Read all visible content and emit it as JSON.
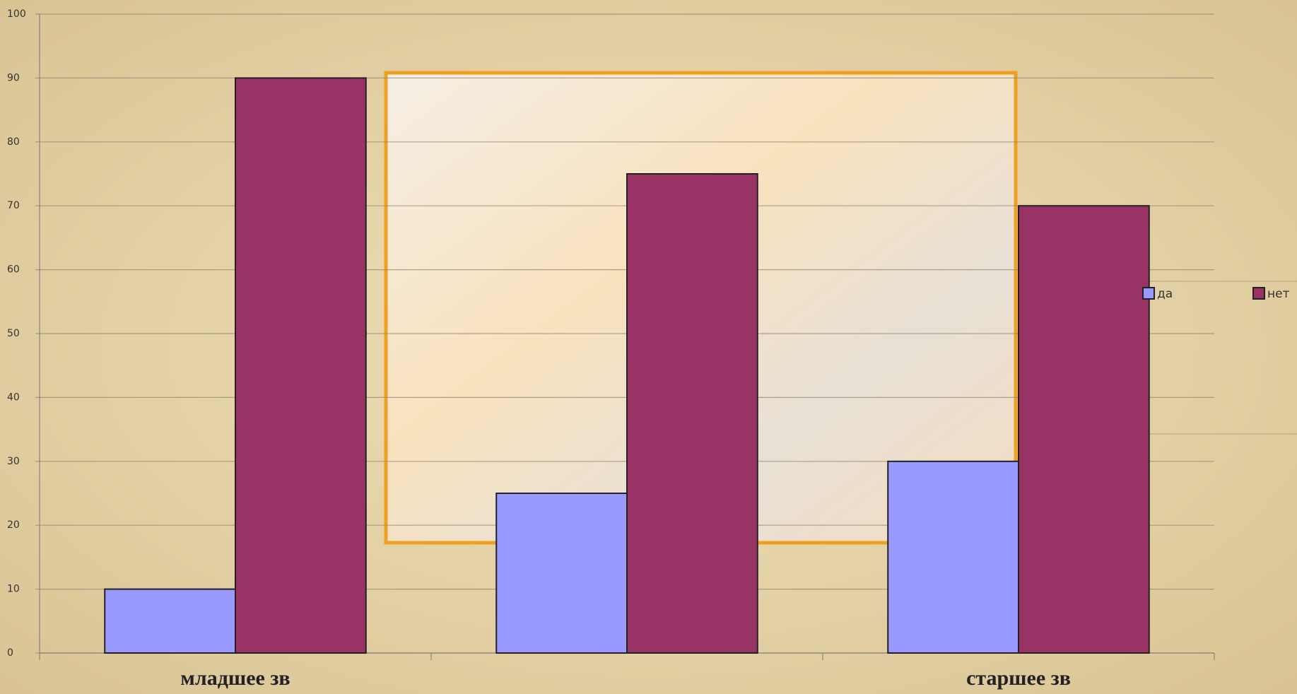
{
  "chart_data": {
    "type": "bar",
    "categories": [
      "младшее зв",
      null,
      "старшее зв"
    ],
    "series": [
      {
        "name": "да",
        "color": "#9999ff",
        "values": [
          10,
          25,
          30
        ]
      },
      {
        "name": "нет",
        "color": "#993366",
        "values": [
          90,
          75,
          70
        ]
      }
    ],
    "ylim": [
      0,
      100
    ],
    "yticks": [
      0,
      10,
      20,
      30,
      40,
      50,
      60,
      70,
      80,
      90,
      100
    ],
    "grid": true,
    "legend": "right"
  }
}
